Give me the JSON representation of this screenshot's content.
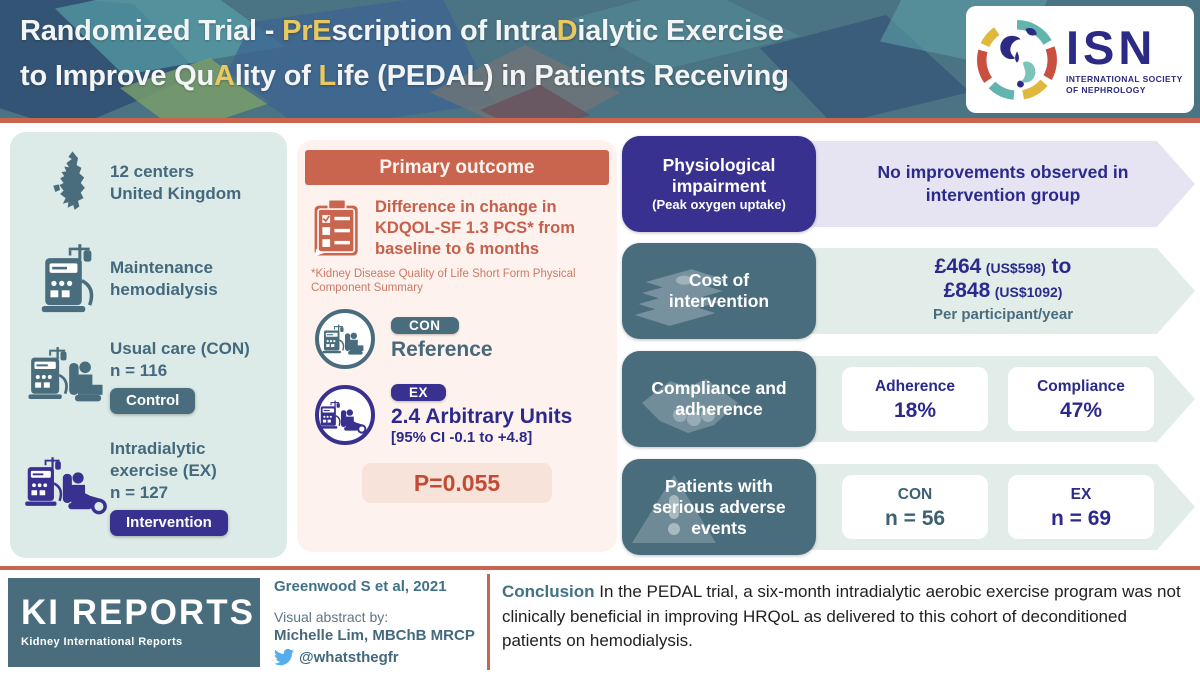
{
  "colors": {
    "header-teal": "#4a7383",
    "slate": "#4a6d7e",
    "slate-text": "#44697e",
    "indigo": "#39318f",
    "indigo-text": "#2b2a8c",
    "terracotta": "#c9654f",
    "terracotta-text": "#c5604c",
    "p-text": "#c44b33",
    "yellow": "#e9c95f",
    "mint": "#dcebe7",
    "mint-arrow": "#e2edea",
    "lavender": "#e6e4f3",
    "pink": "#fdf2ed",
    "pink-box": "#f8e3db",
    "isn-navy": "#2b2a84",
    "teal-text": "#3f7286",
    "twitter-blue": "#55acee",
    "body-text": "#1f1f1f"
  },
  "header": {
    "title_line1": [
      {
        "t": "Randomized Trial - "
      },
      {
        "t": "PrE",
        "hl": true
      },
      {
        "t": "scription of Intra"
      },
      {
        "t": "D",
        "hl": true
      },
      {
        "t": "ialytic Exercise"
      }
    ],
    "title_line2": [
      {
        "t": "to Improve Qu"
      },
      {
        "t": "A",
        "hl": true
      },
      {
        "t": "lity of "
      },
      {
        "t": "L",
        "hl": true
      },
      {
        "t": "ife (PEDAL) in Patients Receiving"
      }
    ],
    "isn_acronym": "ISN",
    "isn_name1": "INTERNATIONAL SOCIETY",
    "isn_name2": "OF NEPHROLOGY"
  },
  "study": {
    "centers_line1": "12 centers",
    "centers_line2": "United Kingdom",
    "treatment_line1": "Maintenance",
    "treatment_line2": "hemodialysis",
    "control_line1": "Usual care (CON)",
    "control_line2": "n = 116",
    "control_badge": "Control",
    "intervention_line1": "Intradialytic",
    "intervention_line2": "exercise (EX)",
    "intervention_line3": "n = 127",
    "intervention_badge": "Intervention"
  },
  "primary_outcome": {
    "title": "Primary outcome",
    "description": "Difference in change in KDQOL-SF 1.3 PCS* from baseline to 6 months",
    "footnote": "*Kidney Disease Quality of Life Short Form Physical Component Summary",
    "con_badge": "CON",
    "con_result": "Reference",
    "ex_badge": "EX",
    "ex_result": "2.4 Arbitrary Units",
    "ex_ci": "[95% CI -0.1 to +4.8]",
    "p_value": "P=0.055"
  },
  "results": {
    "row1_label1": "Physiological",
    "row1_label2": "impairment",
    "row1_sublabel": "(Peak oxygen uptake)",
    "row1_value": "No improvements observed in intervention group",
    "row2_label": "Cost of intervention",
    "row2_amount1": "£464",
    "row2_usd1": "(US$598)",
    "row2_to": " to",
    "row2_amount2": "£848",
    "row2_usd2": "(US$1092)",
    "row2_per": "Per participant/year",
    "row3_label": "Compliance and adherence",
    "row3_card1_title": "Adherence",
    "row3_card1_value": "18%",
    "row3_card2_title": "Compliance",
    "row3_card2_value": "47%",
    "row4_label": "Patients with serious adverse events",
    "row4_card1_title": "CON",
    "row4_card1_value": "n = 56",
    "row4_card2_title": "EX",
    "row4_card2_value": "n = 69"
  },
  "footer": {
    "brand_title": "KI REPORTS",
    "brand_subtitle": "Kidney International Reports",
    "citation": "Greenwood S et al, 2021",
    "credit_label": "Visual abstract by:",
    "credit_name": "Michelle Lim, MBChB MRCP",
    "twitter_handle": "@whatsthegfr",
    "conclusion_label": "Conclusion",
    "conclusion_text": " In the PEDAL trial, a six-month intradialytic aerobic exercise program was not clinically beneficial in improving HRQoL as delivered to this cohort of deconditioned patients on hemodialysis."
  }
}
